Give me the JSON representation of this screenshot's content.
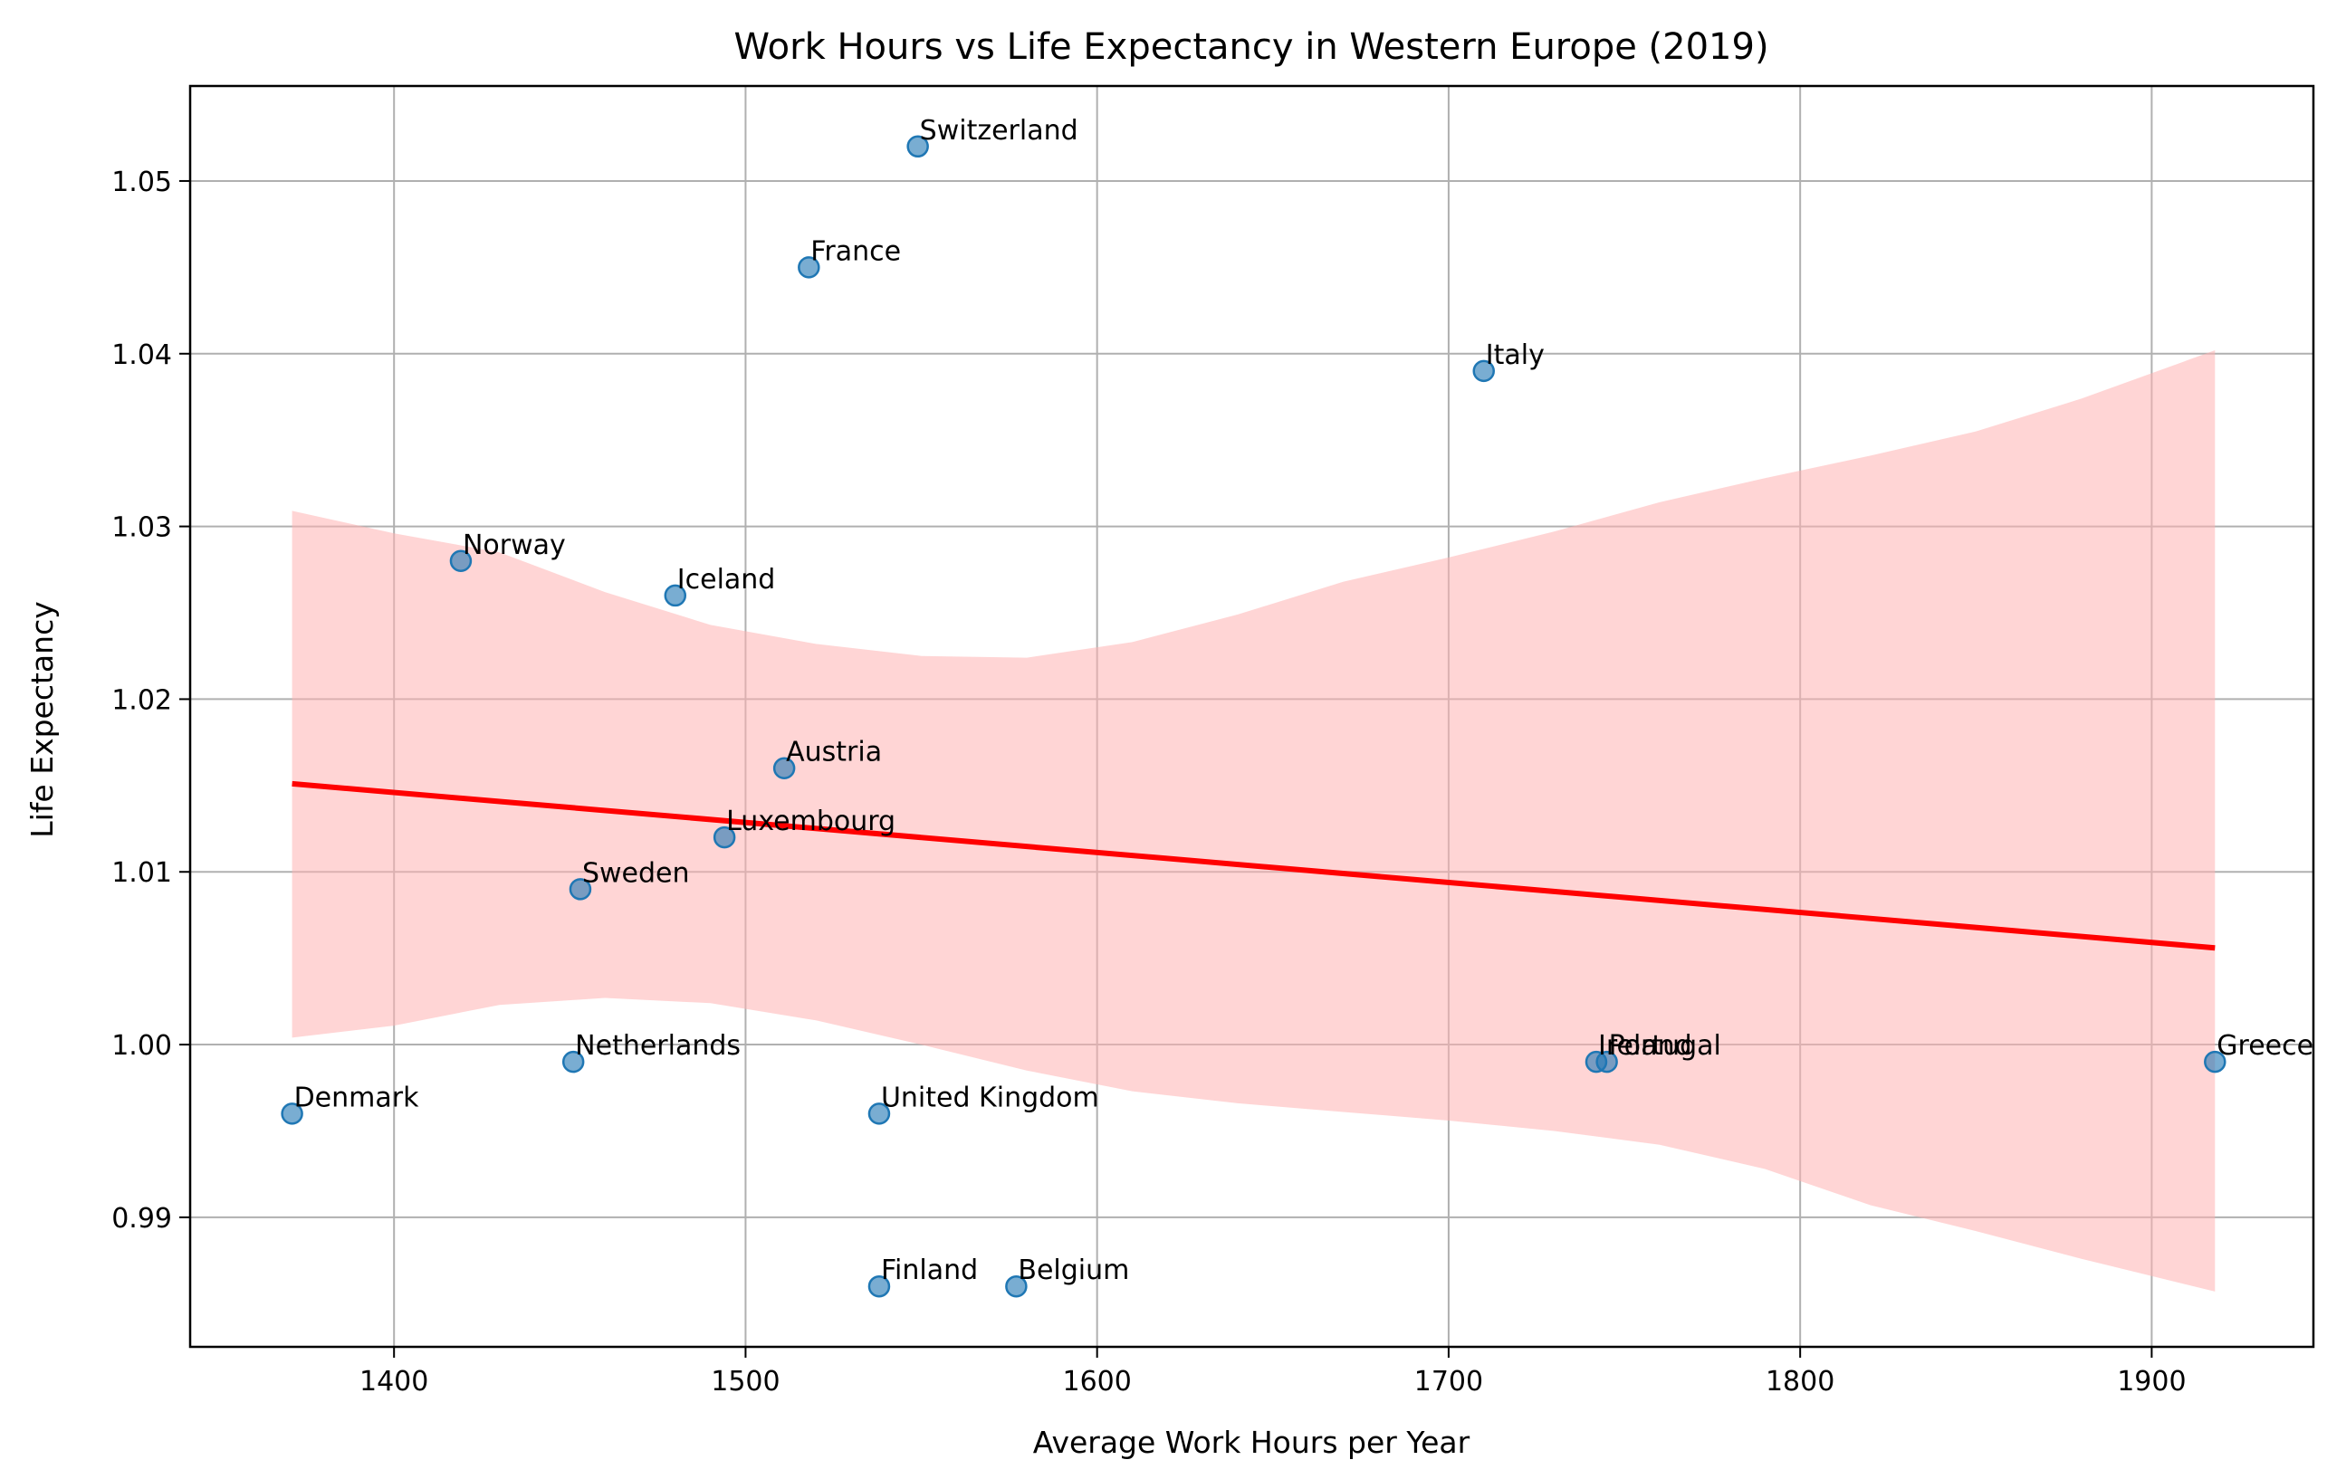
{
  "chart_data": {
    "type": "scatter",
    "title": "Work Hours vs Life Expectancy in Western Europe (2019)",
    "xlabel": "Average Work Hours per Year",
    "ylabel": "Life Expectancy",
    "xlim": [
      1342,
      1946
    ],
    "ylim": [
      0.9825,
      1.0555
    ],
    "xticks": [
      1400,
      1500,
      1600,
      1700,
      1800,
      1900
    ],
    "yticks": [
      0.99,
      1.0,
      1.01,
      1.02,
      1.03,
      1.04,
      1.05
    ],
    "ytick_labels": [
      "0.99",
      "1.00",
      "1.01",
      "1.02",
      "1.03",
      "1.04",
      "1.05"
    ],
    "grid": true,
    "points": [
      {
        "label": "Denmark",
        "x": 1371,
        "y": 0.996
      },
      {
        "label": "Norway",
        "x": 1419,
        "y": 1.028
      },
      {
        "label": "Netherlands",
        "x": 1451,
        "y": 0.999
      },
      {
        "label": "Sweden",
        "x": 1453,
        "y": 1.009
      },
      {
        "label": "Iceland",
        "x": 1480,
        "y": 1.026
      },
      {
        "label": "Luxembourg",
        "x": 1494,
        "y": 1.012
      },
      {
        "label": "Austria",
        "x": 1511,
        "y": 1.016
      },
      {
        "label": "France",
        "x": 1518,
        "y": 1.045
      },
      {
        "label": "United Kingdom",
        "x": 1538,
        "y": 0.996
      },
      {
        "label": "Finland",
        "x": 1538,
        "y": 0.986
      },
      {
        "label": "Switzerland",
        "x": 1549,
        "y": 1.052
      },
      {
        "label": "Belgium",
        "x": 1577,
        "y": 0.986
      },
      {
        "label": "Italy",
        "x": 1710,
        "y": 1.039
      },
      {
        "label": "Ireland",
        "x": 1742,
        "y": 0.999
      },
      {
        "label": "Portugal",
        "x": 1745,
        "y": 0.999
      },
      {
        "label": "Greece",
        "x": 1918,
        "y": 0.999
      }
    ],
    "regression": {
      "x": [
        1371,
        1918
      ],
      "y": [
        1.0151,
        1.0056
      ]
    },
    "confidence_band": {
      "x": [
        1371,
        1400,
        1430,
        1460,
        1490,
        1520,
        1550,
        1580,
        1610,
        1640,
        1670,
        1700,
        1730,
        1760,
        1790,
        1820,
        1850,
        1880,
        1918
      ],
      "upper": [
        1.0309,
        1.0296,
        1.0285,
        1.0262,
        1.0243,
        1.0232,
        1.0225,
        1.0224,
        1.0233,
        1.0249,
        1.0268,
        1.0282,
        1.0297,
        1.0314,
        1.0328,
        1.0341,
        1.0355,
        1.0374,
        1.0402
      ],
      "lower": [
        1.0004,
        1.0011,
        1.0023,
        1.0027,
        1.0024,
        1.0014,
        1.0,
        0.9985,
        0.9973,
        0.9966,
        0.9961,
        0.9956,
        0.995,
        0.9942,
        0.9928,
        0.9907,
        0.9892,
        0.9876,
        0.9857
      ]
    },
    "colors": {
      "points": "#1f77b4",
      "regression": "#ff0000",
      "band": "#ffb3b3"
    }
  }
}
